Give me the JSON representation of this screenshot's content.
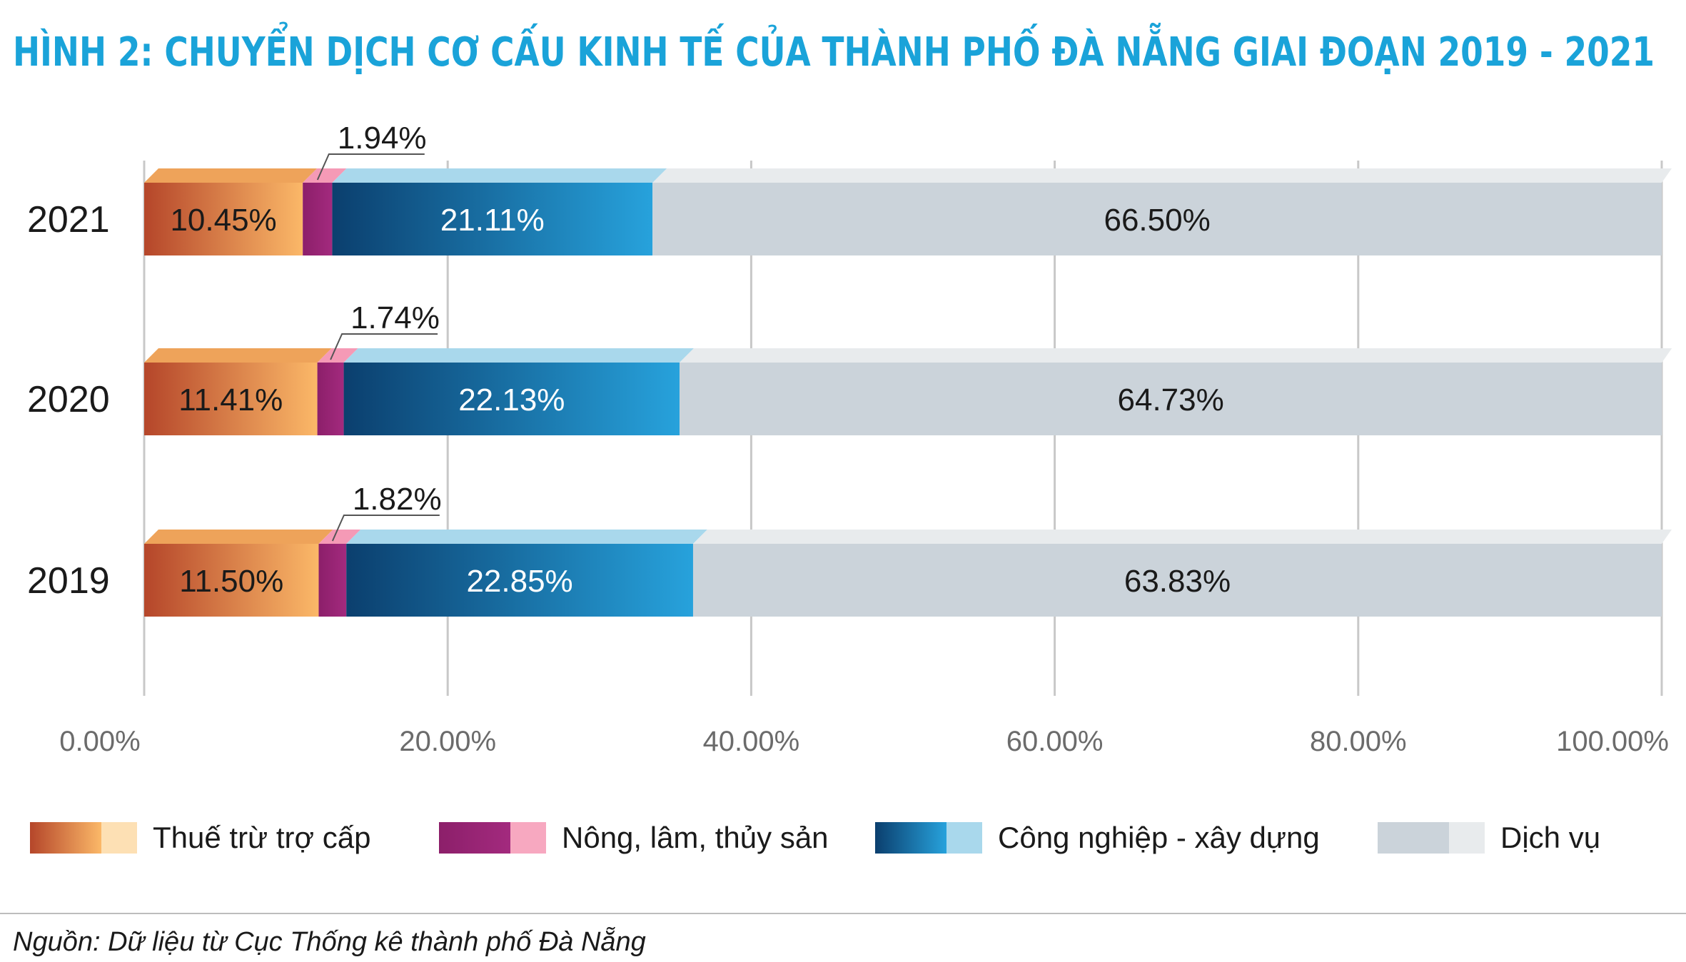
{
  "chart_data": {
    "type": "bar",
    "orientation": "horizontal",
    "stacked": true,
    "title": "HÌNH 2: CHUYỂN DỊCH CƠ CẤU KINH TẾ CỦA THÀNH PHỐ ĐÀ NẴNG GIAI ĐOẠN 2019 - 2021",
    "categories": [
      "2021",
      "2020",
      "2019"
    ],
    "series": [
      {
        "name": "Thuế trừ trợ cấp",
        "values": [
          10.45,
          11.41,
          11.5
        ],
        "labels": [
          "10.45%",
          "11.41%",
          "11.50%"
        ],
        "color_dark": "#b5462a",
        "color_light": "#fbb868",
        "top_color": "#eea35a",
        "side_color": "#fde0b4"
      },
      {
        "name": "Nông, lâm, thủy sản",
        "values": [
          1.94,
          1.74,
          1.82
        ],
        "labels": [
          "1.94%",
          "1.74%",
          "1.82%"
        ],
        "color_dark": "#8c1f6a",
        "color_light": "#a32a7e",
        "top_color": "#f59ab6",
        "side_color": "#f7a8c0"
      },
      {
        "name": "Công nghiệp - xây dựng",
        "values": [
          21.11,
          22.13,
          22.85
        ],
        "labels": [
          "21.11%",
          "22.13%",
          "22.85%"
        ],
        "color_dark": "#0b3f6e",
        "color_light": "#27a2dc",
        "top_color": "#a9d8ec",
        "side_color": "#a9d8ec"
      },
      {
        "name": "Dịch vụ",
        "values": [
          66.5,
          64.73,
          63.83
        ],
        "labels": [
          "66.50%",
          "64.73%",
          "63.83%"
        ],
        "color_dark": "#cbd3da",
        "color_light": "#cbd3da",
        "top_color": "#e8ebed",
        "side_color": "#e8ebed"
      }
    ],
    "xlim": [
      0,
      100
    ],
    "x_ticks": [
      "0.00%",
      "20.00%",
      "40.00%",
      "60.00%",
      "80.00%",
      "100.00%"
    ],
    "grid": true,
    "legend_position": "bottom",
    "source": "Nguồn: Dữ liệu từ Cục Thống kê thành phố Đà Nẵng"
  }
}
